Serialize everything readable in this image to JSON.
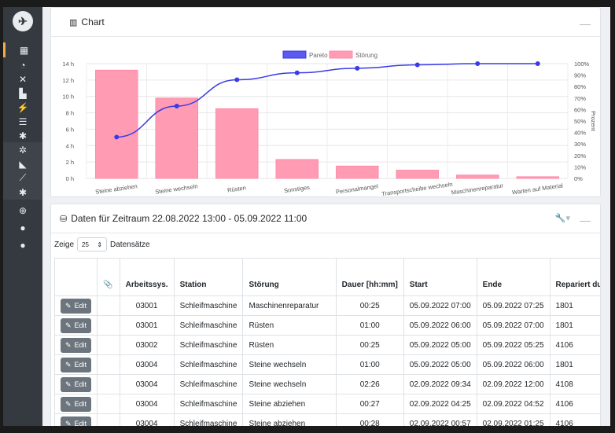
{
  "sidebar": {
    "icons": [
      "building-icon",
      "dashboard-icon",
      "tools-icon",
      "factory-icon",
      "plug-icon",
      "list-icon",
      "gear-icon",
      "gears-icon",
      "chart-area-icon",
      "chart-line-icon",
      "cog-icon",
      "plus-circle-icon",
      "user-cog-icon",
      "user-cog-icon"
    ]
  },
  "chart_card": {
    "title": "Chart"
  },
  "chart_data": {
    "type": "bar",
    "categories": [
      "Steine abziehen",
      "Steine wechseln",
      "Rüsten",
      "Sonstiges",
      "Personalmangel",
      "Transportscheibe wechseln",
      "Maschinenreparatur",
      "Warten auf Material"
    ],
    "series": [
      {
        "name": "Störung",
        "type": "bar",
        "color": "#ff8ca8",
        "values": [
          13.2,
          9.8,
          8.5,
          2.3,
          1.5,
          1.0,
          0.4,
          0.2
        ]
      },
      {
        "name": "Pareto",
        "type": "line",
        "color": "#3a3ae8",
        "values": [
          36,
          63,
          86,
          92,
          96,
          99,
          100,
          100
        ]
      }
    ],
    "y_ticks": [
      "0 h",
      "2 h",
      "4 h",
      "6 h",
      "8 h",
      "10 h",
      "12 h",
      "14 h"
    ],
    "y2_ticks": [
      "0%",
      "10%",
      "20%",
      "30%",
      "40%",
      "50%",
      "60%",
      "70%",
      "80%",
      "90%",
      "100%"
    ],
    "y2label": "Prozent",
    "ylim": [
      0,
      14
    ],
    "y2lim": [
      0,
      100
    ],
    "legend": "top-center",
    "grid": true
  },
  "table_card": {
    "title": "Daten für Zeitraum 22.08.2022 13:00 - 05.09.2022 11:00"
  },
  "controls": {
    "show_label": "Zeige",
    "page_size": "25",
    "records_label": "Datensätze"
  },
  "table": {
    "headers": [
      "",
      "",
      "Arbeitssys.",
      "Station",
      "Störung",
      "Dauer [hh:mm]",
      "Start",
      "Ende",
      "Repariert durch"
    ],
    "edit_label": "Edit",
    "rows": [
      [
        "03001",
        "Schleifmaschine",
        "Maschinenreparatur",
        "00:25",
        "05.09.2022 07:00",
        "05.09.2022 07:25",
        "1801"
      ],
      [
        "03001",
        "Schleifmaschine",
        "Rüsten",
        "01:00",
        "05.09.2022 06:00",
        "05.09.2022 07:00",
        "1801"
      ],
      [
        "03002",
        "Schleifmaschine",
        "Rüsten",
        "00:25",
        "05.09.2022 05:00",
        "05.09.2022 05:25",
        "4106"
      ],
      [
        "03004",
        "Schleifmaschine",
        "Steine wechseln",
        "01:00",
        "05.09.2022 05:00",
        "05.09.2022 06:00",
        "1801"
      ],
      [
        "03004",
        "Schleifmaschine",
        "Steine wechseln",
        "02:26",
        "02.09.2022 09:34",
        "02.09.2022 12:00",
        "4108"
      ],
      [
        "03004",
        "Schleifmaschine",
        "Steine abziehen",
        "00:27",
        "02.09.2022 04:25",
        "02.09.2022 04:52",
        "4106"
      ],
      [
        "03004",
        "Schleifmaschine",
        "Steine abziehen",
        "00:28",
        "02.09.2022 00:57",
        "02.09.2022 01:25",
        "4106"
      ]
    ]
  }
}
